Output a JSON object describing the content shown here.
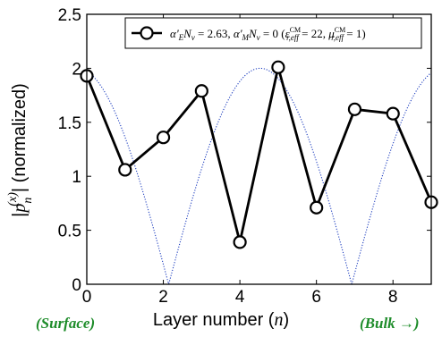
{
  "chart_data": {
    "type": "line",
    "xlabel_main": "Layer number (",
    "xlabel_var": "n",
    "xlabel_close": ")",
    "ylabel_pre": "|",
    "ylabel_p": "p",
    "ylabel_sup": "(x)",
    "ylabel_sub": "n",
    "ylabel_post": "| (normalized)",
    "xlim": [
      0,
      9
    ],
    "ylim": [
      0,
      2.5
    ],
    "x_ticks": [
      0,
      2,
      4,
      6,
      8
    ],
    "x_tick_labels": [
      "0",
      "2",
      "4",
      "6",
      "8"
    ],
    "y_ticks": [
      0,
      0.5,
      1,
      1.5,
      2,
      2.5
    ],
    "y_tick_labels": [
      "0",
      "0.5",
      "1",
      "1.5",
      "2",
      "2.5"
    ],
    "grid": false,
    "legend_position": "top-right",
    "series": [
      {
        "name": "α'ENv = 2.63, α'MNv = 0 (εr,effCM = 22, μr,effCM = 1)",
        "style": "solid black line with open circle markers",
        "color": "#000000",
        "x": [
          0,
          1,
          2,
          3,
          4,
          5,
          6,
          7,
          8,
          9
        ],
        "y": [
          1.93,
          1.06,
          1.36,
          1.79,
          0.39,
          2.01,
          0.71,
          1.62,
          1.58,
          0.76
        ]
      },
      {
        "name": "",
        "style": "dotted blue continuous curve",
        "color": "#1f3fbf",
        "function": "2|cos(0.657·x + 0.165)|"
      }
    ],
    "legend_entry": {
      "a1": "α'",
      "a1_sub": "E",
      "n1": "N",
      "n1_sub": "v",
      "v1": " = 2.63,  ",
      "a2": "α'",
      "a2_sub": "M",
      "n2": "N",
      "n2_sub": "v",
      "v2": " = 0 (",
      "eps": "ε",
      "eps_sup": "CM",
      "eps_sub": "r,eff",
      "v3": " = 22,  ",
      "mu": "μ",
      "mu_sup": "CM",
      "mu_sub": "r,eff",
      "v4": " = 1)"
    },
    "annotations": {
      "left": "(Surface)",
      "right": "(Bulk →)"
    }
  }
}
